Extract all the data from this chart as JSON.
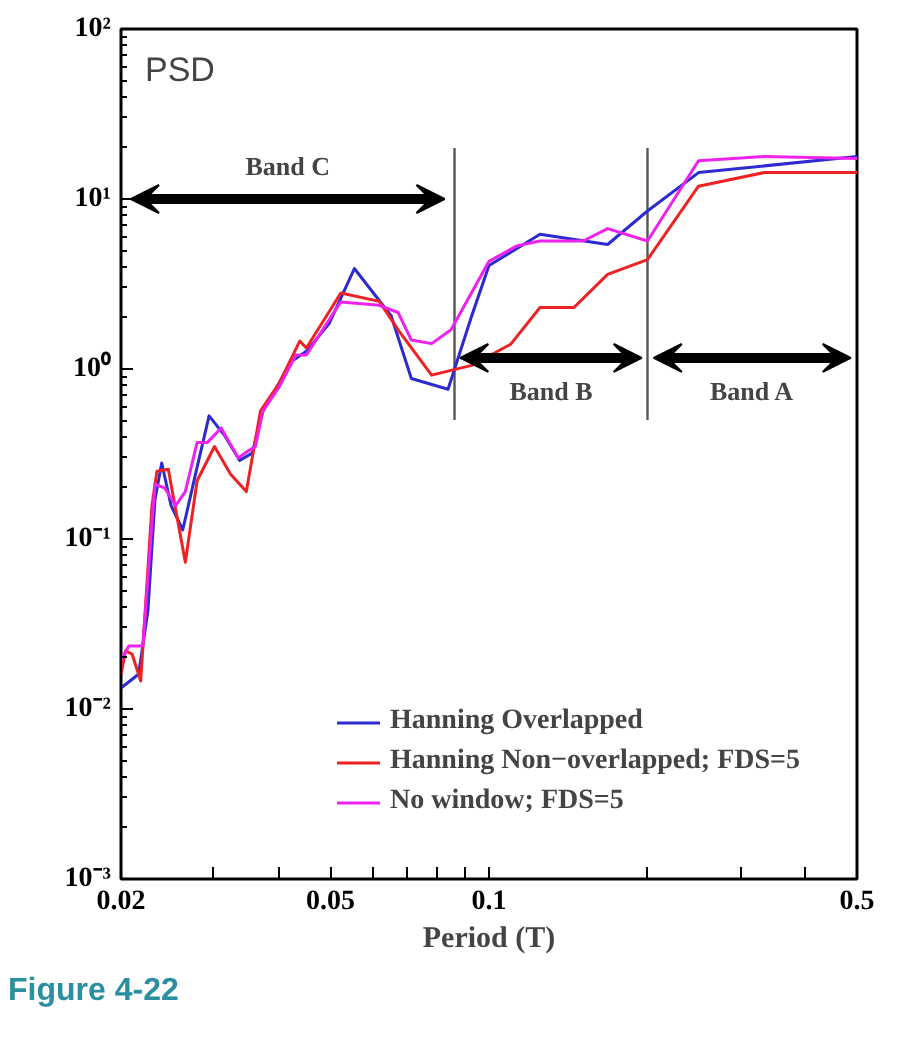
{
  "chart_data": {
    "type": "line",
    "title": "PSD",
    "xlabel": "Period (T)",
    "log": "xy",
    "xlim": [
      0.02,
      0.5
    ],
    "ylim": [
      0.001,
      100
    ],
    "xticks": [
      0.02,
      {
        "value": 0.03,
        "label": null
      },
      {
        "value": 0.04,
        "label": null
      },
      0.05,
      {
        "value": 0.06,
        "label": null
      },
      {
        "value": 0.07,
        "label": null
      },
      {
        "value": 0.08,
        "label": null
      },
      {
        "value": 0.09,
        "label": null
      },
      0.1,
      {
        "value": 0.2,
        "label": null
      },
      {
        "value": 0.3,
        "label": null
      },
      {
        "value": 0.4,
        "label": null
      },
      0.5
    ],
    "yticks": [
      {
        "value": 0.001,
        "label": "10⁻³"
      },
      {
        "value": 0.01,
        "label": "10⁻²"
      },
      {
        "value": 0.1,
        "label": "10⁻¹"
      },
      {
        "value": 1,
        "label": "10⁰"
      },
      {
        "value": 10,
        "label": "10¹"
      },
      {
        "value": 100,
        "label": "10²"
      }
    ],
    "grid": false,
    "legend": "bottom right",
    "line_style": "solid",
    "series": [
      {
        "name": "Hanning Overlapped",
        "color": "#2b2bd0",
        "x": [
          0.02,
          0.0216,
          0.0225,
          0.0232,
          0.0239,
          0.0249,
          0.0262,
          0.0279,
          0.0294,
          0.0314,
          0.0336,
          0.0355,
          0.0372,
          0.0396,
          0.042,
          0.045,
          0.0497,
          0.0555,
          0.0652,
          0.0712,
          0.0836,
          0.0927,
          0.1,
          0.125,
          0.168,
          0.2,
          0.25,
          0.5
        ],
        "values": [
          0.0133,
          0.016,
          0.038,
          0.17,
          0.28,
          0.157,
          0.113,
          0.265,
          0.53,
          0.41,
          0.29,
          0.32,
          0.565,
          0.79,
          1.1,
          1.27,
          1.85,
          3.9,
          2.05,
          0.88,
          0.76,
          2.05,
          4.06,
          6.2,
          5.4,
          8.5,
          14.3,
          17.8
        ]
      },
      {
        "name": "Hanning Non−overlapped; FDS=5",
        "color": "#ee2222",
        "x": [
          0.02,
          0.0204,
          0.021,
          0.0218,
          0.0229,
          0.0234,
          0.0246,
          0.0252,
          0.0265,
          0.0279,
          0.0301,
          0.0323,
          0.0346,
          0.0368,
          0.04,
          0.0437,
          0.045,
          0.0523,
          0.0619,
          0.0672,
          0.0778,
          0.0927,
          0.11,
          0.125,
          0.145,
          0.168,
          0.2,
          0.25,
          0.333,
          0.5
        ],
        "values": [
          0.016,
          0.022,
          0.021,
          0.0146,
          0.157,
          0.25,
          0.257,
          0.17,
          0.073,
          0.22,
          0.35,
          0.24,
          0.19,
          0.565,
          0.83,
          1.46,
          1.33,
          2.8,
          2.5,
          1.7,
          0.92,
          1.05,
          1.4,
          2.3,
          2.3,
          3.6,
          4.4,
          11.9,
          14.3,
          14.3
        ]
      },
      {
        "name": "No window; FDS=5",
        "color": "#ee22ee",
        "x": [
          0.02,
          0.0207,
          0.0213,
          0.022,
          0.0232,
          0.0242,
          0.0254,
          0.0265,
          0.0279,
          0.0292,
          0.031,
          0.0334,
          0.0349,
          0.036,
          0.0372,
          0.04,
          0.043,
          0.045,
          0.0497,
          0.0523,
          0.0619,
          0.0672,
          0.0712,
          0.0778,
          0.0847,
          0.1,
          0.113,
          0.125,
          0.151,
          0.168,
          0.2,
          0.25,
          0.333,
          0.5
        ],
        "values": [
          0.0194,
          0.0235,
          0.0235,
          0.0235,
          0.21,
          0.2,
          0.157,
          0.19,
          0.37,
          0.37,
          0.45,
          0.3,
          0.33,
          0.35,
          0.565,
          0.79,
          1.21,
          1.21,
          1.95,
          2.48,
          2.37,
          2.15,
          1.48,
          1.41,
          1.7,
          4.3,
          5.3,
          5.66,
          5.66,
          6.7,
          5.66,
          16.8,
          17.8,
          17.3
        ]
      }
    ],
    "ref_lines": [
      {
        "axis": "x",
        "value": 0.086,
        "color": "#555555"
      },
      {
        "axis": "x",
        "value": 0.2,
        "color": "#555555"
      }
    ],
    "annotations": [
      "Band C",
      "Band B",
      "Band A",
      "Figure 4-22"
    ]
  }
}
